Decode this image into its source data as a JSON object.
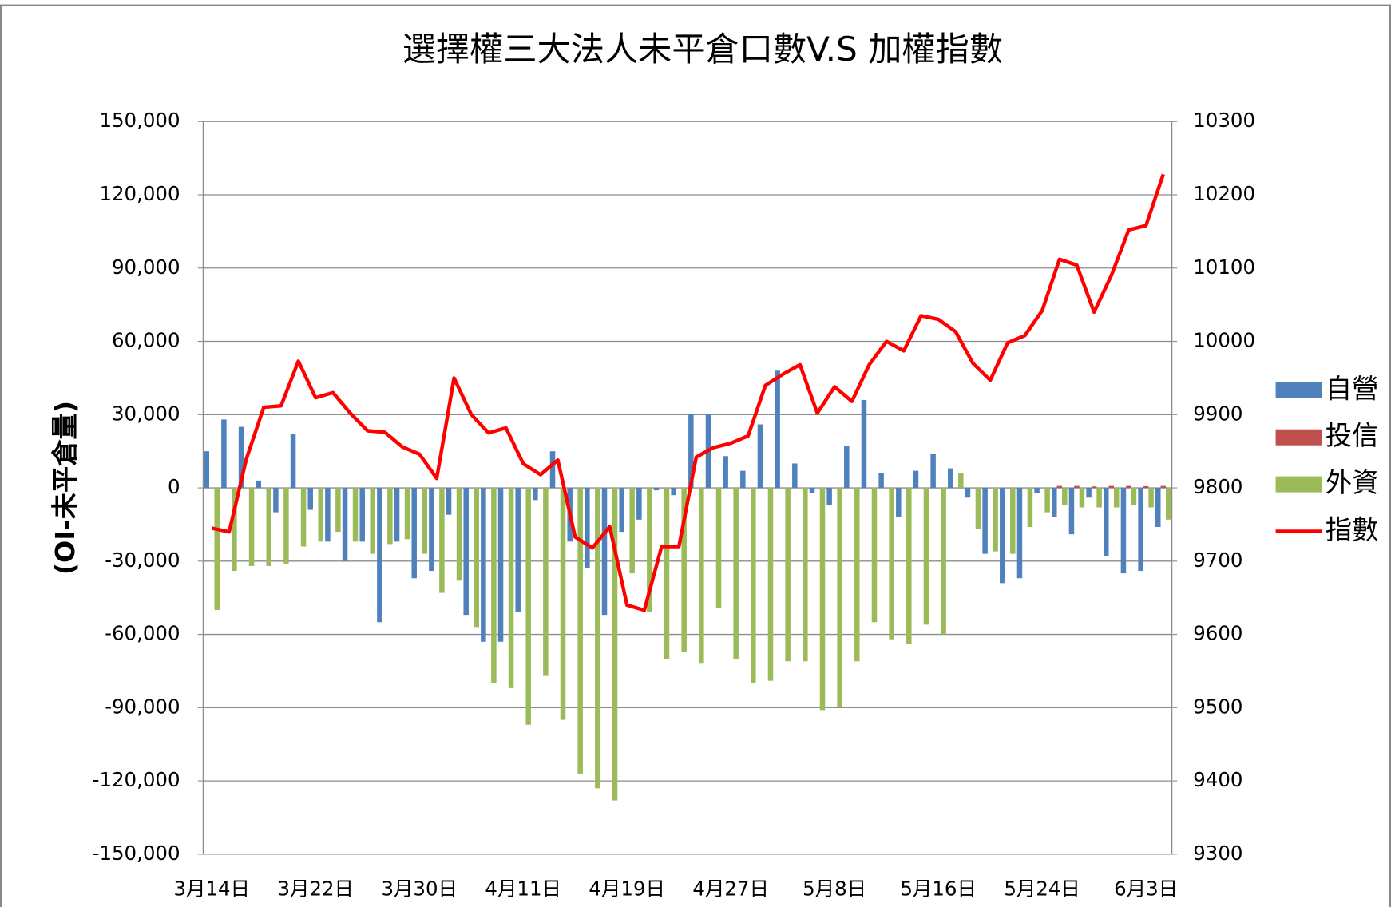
{
  "chart_data": {
    "type": "bar",
    "title": "選擇權三大法人未平倉口數V.S 加權指數",
    "y_label": "(OI-未平倉量)",
    "categories": [
      "3月14日",
      null,
      null,
      null,
      null,
      null,
      "3月22日",
      null,
      null,
      null,
      null,
      null,
      "3月30日",
      null,
      null,
      null,
      null,
      null,
      "4月11日",
      null,
      null,
      null,
      null,
      null,
      "4月19日",
      null,
      null,
      null,
      null,
      null,
      "4月27日",
      null,
      null,
      null,
      null,
      null,
      "5月8日",
      null,
      null,
      null,
      null,
      null,
      "5月16日",
      null,
      null,
      null,
      null,
      null,
      "5月24日",
      null,
      null,
      null,
      null,
      null,
      "6月3日",
      null
    ],
    "ylim": [
      -150000,
      150000
    ],
    "yticks": [
      {
        "value": -150000,
        "label": "-150,000"
      },
      {
        "value": -120000,
        "label": "-120,000"
      },
      {
        "value": -90000,
        "label": "-90,000"
      },
      {
        "value": -60000,
        "label": "-60,000"
      },
      {
        "value": -30000,
        "label": "-30,000"
      },
      0,
      {
        "value": 30000,
        "label": "30,000"
      },
      {
        "value": 60000,
        "label": "60,000"
      },
      {
        "value": 90000,
        "label": "90,000"
      },
      {
        "value": 120000,
        "label": "120,000"
      },
      {
        "value": 150000,
        "label": "150,000"
      }
    ],
    "y2lim": [
      9300,
      10300
    ],
    "y2ticks": [
      9300,
      9400,
      9500,
      9600,
      9700,
      9800,
      9900,
      10000,
      10100,
      10200,
      10300
    ],
    "grid": true,
    "legend": "right",
    "series": [
      {
        "name": "自營",
        "type": "bar",
        "color": "#4f81bd",
        "values": [
          15000,
          28000,
          25000,
          3000,
          -10000,
          22000,
          -9000,
          -22000,
          -30000,
          -22000,
          -55000,
          -22000,
          -37000,
          -34000,
          -11000,
          -52000,
          -63000,
          -63000,
          -51000,
          -5000,
          15000,
          -22000,
          -33000,
          -52000,
          -18000,
          -13000,
          -1000,
          -3000,
          30000,
          30000,
          13000,
          7000,
          26000,
          48000,
          10000,
          -2000,
          -7000,
          17000,
          36000,
          6000,
          -12000,
          7000,
          14000,
          8000,
          -4000,
          -27000,
          -39000,
          -37000,
          -2000,
          -12000,
          -19000,
          -4000,
          -28000,
          -35000,
          -34000,
          -16000
        ]
      },
      {
        "name": "投信",
        "type": "bar",
        "color": "#c0504d",
        "values": [
          0,
          0,
          0,
          0,
          0,
          0,
          0,
          0,
          0,
          0,
          0,
          0,
          0,
          0,
          0,
          0,
          0,
          0,
          0,
          0,
          0,
          0,
          0,
          0,
          0,
          0,
          0,
          0,
          0,
          0,
          0,
          0,
          0,
          0,
          0,
          0,
          0,
          0,
          0,
          0,
          0,
          0,
          0,
          0,
          0,
          0,
          0,
          0,
          0,
          800,
          800,
          600,
          800,
          800,
          700,
          800
        ]
      },
      {
        "name": "外資",
        "type": "bar",
        "color": "#9bbb59",
        "values": [
          -50000,
          -34000,
          -32000,
          -32000,
          -31000,
          -24000,
          -22000,
          -18000,
          -22000,
          -27000,
          -23000,
          -21000,
          -27000,
          -43000,
          -38000,
          -57000,
          -80000,
          -82000,
          -97000,
          -77000,
          -95000,
          -117000,
          -123000,
          -128000,
          -35000,
          -51000,
          -70000,
          -67000,
          -72000,
          -49000,
          -70000,
          -80000,
          -79000,
          -71000,
          -71000,
          -91000,
          -90000,
          -71000,
          -55000,
          -62000,
          -64000,
          -56000,
          -60000,
          6000,
          -17000,
          -26000,
          -27000,
          -16000,
          -10000,
          -7000,
          -8000,
          -8000,
          -8000,
          -7000,
          -8000,
          -13000
        ]
      },
      {
        "name": "指數",
        "type": "line",
        "axis": "y2",
        "color": "#ff0000",
        "values": [
          9745,
          9740,
          9840,
          9910,
          9912,
          9973,
          9923,
          9930,
          9902,
          9878,
          9876,
          9856,
          9846,
          9813,
          9950,
          9900,
          9875,
          9882,
          9833,
          9818,
          9838,
          9733,
          9718,
          9747,
          9640,
          9633,
          9720,
          9720,
          9842,
          9855,
          9861,
          9871,
          9940,
          9955,
          9968,
          9902,
          9938,
          9918,
          9968,
          10000,
          9987,
          10035,
          10030,
          10013,
          9970,
          9947,
          9998,
          10008,
          10042,
          10112,
          10104,
          10040,
          10090,
          10152,
          10158,
          10228
        ]
      }
    ]
  }
}
